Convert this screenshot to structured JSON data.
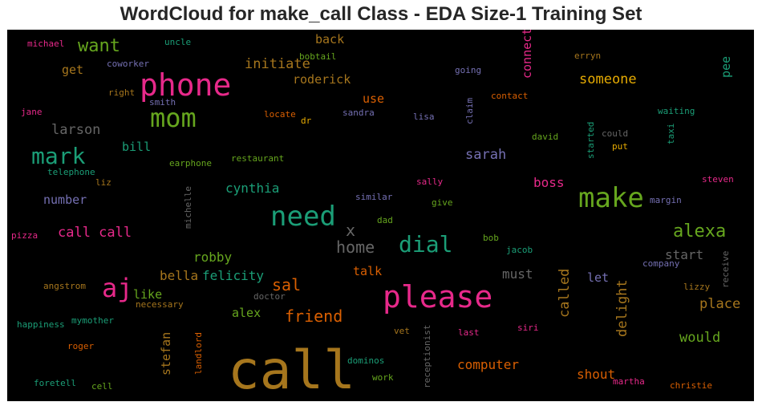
{
  "chart_data": {
    "type": "wordcloud",
    "title": "WordCloud for make_call Class - EDA Size-1 Training Set",
    "words": [
      {
        "text": "call",
        "color": "#a6761d",
        "size": 66
      },
      {
        "text": "please",
        "color": "#e7298a",
        "size": 38
      },
      {
        "text": "phone",
        "color": "#e7298a",
        "size": 38
      },
      {
        "text": "need",
        "color": "#1b9e77",
        "size": 34
      },
      {
        "text": "make",
        "color": "#66a61e",
        "size": 34
      },
      {
        "text": "mom",
        "color": "#66a61e",
        "size": 32
      },
      {
        "text": "aj",
        "color": "#e7298a",
        "size": 32
      },
      {
        "text": "mark",
        "color": "#1b9e77",
        "size": 28
      },
      {
        "text": "dial",
        "color": "#1b9e77",
        "size": 28
      },
      {
        "text": "alexa",
        "color": "#66a61e",
        "size": 22
      },
      {
        "text": "want",
        "color": "#66a61e",
        "size": 22
      },
      {
        "text": "home",
        "color": "#666666",
        "size": 20
      },
      {
        "text": "sal",
        "color": "#d95f02",
        "size": 20
      },
      {
        "text": "friend",
        "color": "#d95f02",
        "size": 20
      },
      {
        "text": "x",
        "color": "#666666",
        "size": 20
      },
      {
        "text": "call call",
        "color": "#e7298a",
        "size": 17
      },
      {
        "text": "initiate",
        "color": "#a6761d",
        "size": 17
      },
      {
        "text": "someone",
        "color": "#e6ab02",
        "size": 17
      },
      {
        "text": "larson",
        "color": "#666666",
        "size": 17
      },
      {
        "text": "sarah",
        "color": "#7570b3",
        "size": 17
      },
      {
        "text": "cynthia",
        "color": "#1b9e77",
        "size": 16
      },
      {
        "text": "robby",
        "color": "#66a61e",
        "size": 16
      },
      {
        "text": "felicity",
        "color": "#1b9e77",
        "size": 16
      },
      {
        "text": "bella",
        "color": "#a6761d",
        "size": 16
      },
      {
        "text": "must",
        "color": "#666666",
        "size": 16
      },
      {
        "text": "start",
        "color": "#666666",
        "size": 16
      },
      {
        "text": "place",
        "color": "#a6761d",
        "size": 17
      },
      {
        "text": "would",
        "color": "#66a61e",
        "size": 17
      },
      {
        "text": "computer",
        "color": "#d95f02",
        "size": 16
      },
      {
        "text": "shout",
        "color": "#d95f02",
        "size": 16
      },
      {
        "text": "boss",
        "color": "#e7298a",
        "size": 16
      },
      {
        "text": "roderick",
        "color": "#a6761d",
        "size": 15
      },
      {
        "text": "number",
        "color": "#7570b3",
        "size": 15
      },
      {
        "text": "bill",
        "color": "#1b9e77",
        "size": 15
      },
      {
        "text": "get",
        "color": "#a6761d",
        "size": 15
      },
      {
        "text": "back",
        "color": "#a6761d",
        "size": 15
      },
      {
        "text": "use",
        "color": "#d95f02",
        "size": 15
      },
      {
        "text": "talk",
        "color": "#d95f02",
        "size": 15
      },
      {
        "text": "like",
        "color": "#66a61e",
        "size": 15
      },
      {
        "text": "alex",
        "color": "#66a61e",
        "size": 15
      },
      {
        "text": "let",
        "color": "#7570b3",
        "size": 15
      },
      {
        "text": "connect",
        "color": "#e7298a",
        "size": 15
      },
      {
        "text": "called",
        "color": "#a6761d",
        "size": 17
      },
      {
        "text": "delight",
        "color": "#a6761d",
        "size": 17
      },
      {
        "text": "stefan",
        "color": "#a6761d",
        "size": 15
      },
      {
        "text": "pee",
        "color": "#1b9e77",
        "size": 15
      },
      {
        "text": "michael",
        "color": "#e7298a",
        "size": 11
      },
      {
        "text": "uncle",
        "color": "#1b9e77",
        "size": 11
      },
      {
        "text": "coworker",
        "color": "#7570b3",
        "size": 11
      },
      {
        "text": "bobtail",
        "color": "#66a61e",
        "size": 11
      },
      {
        "text": "erryn",
        "color": "#a6761d",
        "size": 11
      },
      {
        "text": "going",
        "color": "#7570b3",
        "size": 11
      },
      {
        "text": "right",
        "color": "#a6761d",
        "size": 11
      },
      {
        "text": "smith",
        "color": "#7570b3",
        "size": 11
      },
      {
        "text": "contact",
        "color": "#d95f02",
        "size": 11
      },
      {
        "text": "jane",
        "color": "#e7298a",
        "size": 11
      },
      {
        "text": "locate",
        "color": "#d95f02",
        "size": 11
      },
      {
        "text": "dr",
        "color": "#e6ab02",
        "size": 11
      },
      {
        "text": "sandra",
        "color": "#7570b3",
        "size": 11
      },
      {
        "text": "lisa",
        "color": "#7570b3",
        "size": 11
      },
      {
        "text": "claim",
        "color": "#7570b3",
        "size": 11
      },
      {
        "text": "waiting",
        "color": "#1b9e77",
        "size": 11
      },
      {
        "text": "david",
        "color": "#66a61e",
        "size": 11
      },
      {
        "text": "could",
        "color": "#666666",
        "size": 11
      },
      {
        "text": "started",
        "color": "#1b9e77",
        "size": 11
      },
      {
        "text": "taxi",
        "color": "#1b9e77",
        "size": 11
      },
      {
        "text": "put",
        "color": "#e6ab02",
        "size": 11
      },
      {
        "text": "earphone",
        "color": "#66a61e",
        "size": 11
      },
      {
        "text": "restaurant",
        "color": "#66a61e",
        "size": 11
      },
      {
        "text": "telephone",
        "color": "#1b9e77",
        "size": 11
      },
      {
        "text": "liz",
        "color": "#a6761d",
        "size": 11
      },
      {
        "text": "sally",
        "color": "#e7298a",
        "size": 11
      },
      {
        "text": "steven",
        "color": "#e7298a",
        "size": 11
      },
      {
        "text": "similar",
        "color": "#7570b3",
        "size": 11
      },
      {
        "text": "give",
        "color": "#66a61e",
        "size": 11
      },
      {
        "text": "margin",
        "color": "#7570b3",
        "size": 11
      },
      {
        "text": "michelle",
        "color": "#666666",
        "size": 11
      },
      {
        "text": "dad",
        "color": "#66a61e",
        "size": 11
      },
      {
        "text": "pizza",
        "color": "#e7298a",
        "size": 11
      },
      {
        "text": "bob",
        "color": "#66a61e",
        "size": 11
      },
      {
        "text": "jacob",
        "color": "#1b9e77",
        "size": 11
      },
      {
        "text": "company",
        "color": "#7570b3",
        "size": 11
      },
      {
        "text": "receive",
        "color": "#666666",
        "size": 11
      },
      {
        "text": "angstrom",
        "color": "#a6761d",
        "size": 11
      },
      {
        "text": "doctor",
        "color": "#666666",
        "size": 11
      },
      {
        "text": "lizzy",
        "color": "#a6761d",
        "size": 11
      },
      {
        "text": "necessary",
        "color": "#a6761d",
        "size": 11
      },
      {
        "text": "happiness",
        "color": "#1b9e77",
        "size": 11
      },
      {
        "text": "mymother",
        "color": "#1b9e77",
        "size": 11
      },
      {
        "text": "landlord",
        "color": "#d95f02",
        "size": 11
      },
      {
        "text": "receptionist",
        "color": "#666666",
        "size": 11
      },
      {
        "text": "vet",
        "color": "#a6761d",
        "size": 11
      },
      {
        "text": "last",
        "color": "#e7298a",
        "size": 11
      },
      {
        "text": "siri",
        "color": "#e7298a",
        "size": 11
      },
      {
        "text": "roger",
        "color": "#d95f02",
        "size": 11
      },
      {
        "text": "dominos",
        "color": "#1b9e77",
        "size": 11
      },
      {
        "text": "work",
        "color": "#66a61e",
        "size": 11
      },
      {
        "text": "martha",
        "color": "#e7298a",
        "size": 11
      },
      {
        "text": "christie",
        "color": "#d95f02",
        "size": 11
      },
      {
        "text": "foretell",
        "color": "#1b9e77",
        "size": 11
      },
      {
        "text": "cell",
        "color": "#66a61e",
        "size": 11
      }
    ]
  }
}
